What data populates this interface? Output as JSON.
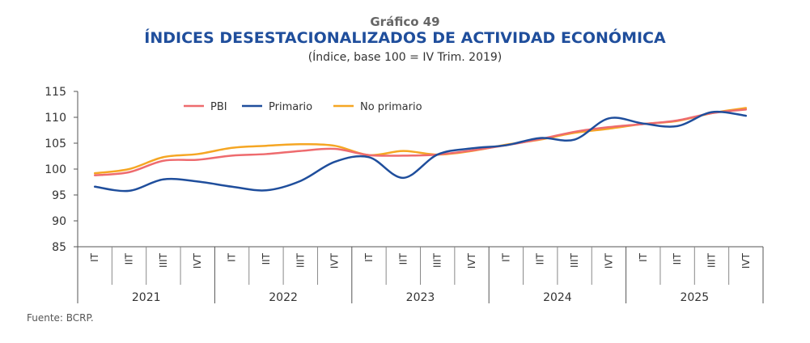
{
  "header": {
    "chart_number": "Gráfico 49",
    "title": "ÍNDICES DESESTACIONALIZADOS DE ACTIVIDAD ECONÓMICA",
    "subtitle": "(Índice, base 100 = IV Trim. 2019)"
  },
  "footer": {
    "source": "Fuente: BCRP."
  },
  "chart_data": {
    "type": "line",
    "title": "ÍNDICES DESESTACIONALIZADOS DE ACTIVIDAD ECONÓMICA",
    "subtitle": "(Índice, base 100 = IV Trim. 2019)",
    "xlabel": "",
    "ylabel": "",
    "ylim": [
      85,
      115
    ],
    "yticks": [
      85,
      90,
      95,
      100,
      105,
      110,
      115
    ],
    "grid": false,
    "legend_position": "top-left-inside",
    "categories": [
      "IT",
      "IIT",
      "IIIT",
      "IVT",
      "IT",
      "IIT",
      "IIIT",
      "IVT",
      "IT",
      "IIT",
      "IIIT",
      "IVT",
      "IT",
      "IIT",
      "IIIT",
      "IVT",
      "IT",
      "IIT",
      "IIIT",
      "IVT"
    ],
    "years": [
      "2021",
      "2022",
      "2023",
      "2024",
      "2025"
    ],
    "series": [
      {
        "name": "PBI",
        "color": "#ee6b6e",
        "values": [
          98.8,
          99.4,
          101.6,
          101.8,
          102.6,
          102.9,
          103.5,
          103.9,
          102.7,
          102.6,
          102.8,
          103.6,
          104.6,
          105.8,
          107.2,
          108.1,
          108.7,
          109.4,
          110.8,
          111.5
        ]
      },
      {
        "name": "Primario",
        "color": "#1f4e9c",
        "values": [
          96.6,
          95.8,
          98.0,
          97.6,
          96.6,
          95.9,
          97.7,
          101.4,
          102.3,
          98.3,
          102.8,
          104.0,
          104.6,
          106.0,
          105.7,
          109.8,
          108.8,
          108.3,
          111.0,
          110.3
        ]
      },
      {
        "name": "No primario",
        "color": "#f5a623",
        "values": [
          99.2,
          100.0,
          102.3,
          102.9,
          104.1,
          104.5,
          104.8,
          104.5,
          102.7,
          103.5,
          102.8,
          103.5,
          104.7,
          105.7,
          107.0,
          107.8,
          108.7,
          109.3,
          110.8,
          111.8
        ]
      }
    ]
  }
}
